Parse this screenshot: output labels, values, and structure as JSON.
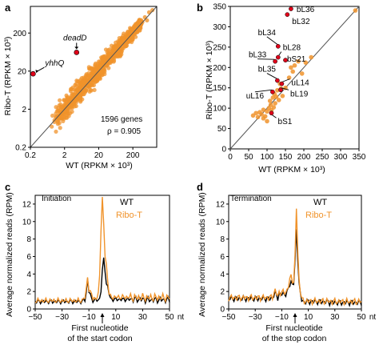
{
  "colors": {
    "ribo_t": "#f0932b",
    "wt": "#000000",
    "highlight": "#e0001a",
    "diagonal": "#555555"
  },
  "chart_data": [
    {
      "panel": "a",
      "type": "scatter",
      "scale": "log",
      "xlabel": "WT (RPKM × 10³)",
      "ylabel": "Ribo-T (RPKM × 10³)",
      "xlim": [
        0.2,
        1000
      ],
      "ylim": [
        0.2,
        1000
      ],
      "xticks": [
        0.2,
        2,
        20,
        200
      ],
      "yticks": [
        0.2,
        2,
        20,
        200
      ],
      "diagonal": true,
      "genes_text": "1596 genes",
      "rho_text": "ρ = 0.905",
      "highlighted": [
        {
          "label": "deadD",
          "x": 4.5,
          "y": 62
        },
        {
          "label": "yhhQ",
          "x": 0.24,
          "y": 17
        }
      ]
    },
    {
      "panel": "b",
      "type": "scatter",
      "xlabel": "WT (RPKM × 10³)",
      "ylabel": "Ribo-T (RPKM × 10³)",
      "xlim": [
        0,
        350
      ],
      "ylim": [
        0,
        350
      ],
      "xticks": [
        0,
        50,
        100,
        150,
        200,
        250,
        300,
        350
      ],
      "yticks": [
        0,
        50,
        100,
        150,
        200,
        250,
        300,
        350
      ],
      "diagonal": true,
      "orange_points": [
        [
          62,
          82
        ],
        [
          70,
          88
        ],
        [
          75,
          78
        ],
        [
          80,
          90
        ],
        [
          85,
          85
        ],
        [
          90,
          96
        ],
        [
          95,
          80
        ],
        [
          100,
          92
        ],
        [
          105,
          100
        ],
        [
          108,
          118
        ],
        [
          110,
          108
        ],
        [
          112,
          95
        ],
        [
          116,
          126
        ],
        [
          120,
          135
        ],
        [
          122,
          112
        ],
        [
          125,
          128
        ],
        [
          128,
          144
        ],
        [
          132,
          120
        ],
        [
          135,
          160
        ],
        [
          138,
          148
        ],
        [
          142,
          130
        ],
        [
          150,
          150
        ],
        [
          160,
          175
        ],
        [
          165,
          200
        ],
        [
          170,
          190
        ],
        [
          175,
          205
        ],
        [
          185,
          215
        ],
        [
          195,
          185
        ],
        [
          205,
          212
        ],
        [
          220,
          225
        ],
        [
          118,
          102
        ],
        [
          90,
          75
        ],
        [
          100,
          68
        ],
        [
          340,
          340
        ]
      ],
      "red_points": [
        {
          "label": "bL36",
          "x": 165,
          "y": 344
        },
        {
          "label": "bL32",
          "x": 155,
          "y": 330
        },
        {
          "label": "bL34",
          "x": 130,
          "y": 252
        },
        {
          "label": "bL28",
          "x": 130,
          "y": 225
        },
        {
          "label": "bL33",
          "x": 122,
          "y": 215
        },
        {
          "label": "bS21",
          "x": 150,
          "y": 218
        },
        {
          "label": "bL35",
          "x": 128,
          "y": 168
        },
        {
          "label": "uL14",
          "x": 140,
          "y": 160
        },
        {
          "label": "bL19",
          "x": 137,
          "y": 145
        },
        {
          "label": "uL16",
          "x": 115,
          "y": 140
        },
        {
          "label": "bS1",
          "x": 112,
          "y": 88
        }
      ]
    },
    {
      "panel": "c",
      "type": "line",
      "panel_label": "Initiation",
      "xlabel_line1": "First nucleotide",
      "xlabel_line2": "of the start codon",
      "ylabel": "Average normalized reads (RPM)",
      "xlim": [
        -50,
        50
      ],
      "ylim": [
        0,
        13
      ],
      "xticks": [
        -50,
        -30,
        -10,
        10,
        30,
        50
      ],
      "yticks": [
        0,
        2,
        4,
        6,
        8,
        10,
        12
      ],
      "x_unit": "nt",
      "series": [
        {
          "name": "WT",
          "color": "#000000"
        },
        {
          "name": "Ribo-T",
          "color": "#f0932b"
        }
      ]
    },
    {
      "panel": "d",
      "type": "line",
      "panel_label": "Termination",
      "xlabel_line1": "First nucleotide",
      "xlabel_line2": "of the stop codon",
      "ylabel": "Average normalized reads (RPM)",
      "xlim": [
        -50,
        50
      ],
      "ylim": [
        0,
        13
      ],
      "xticks": [
        -50,
        -30,
        -10,
        10,
        30,
        50
      ],
      "yticks": [
        0,
        2,
        4,
        6,
        8,
        10,
        12
      ],
      "x_unit": "nt",
      "series": [
        {
          "name": "WT",
          "color": "#000000"
        },
        {
          "name": "Ribo-T",
          "color": "#f0932b"
        }
      ]
    }
  ]
}
